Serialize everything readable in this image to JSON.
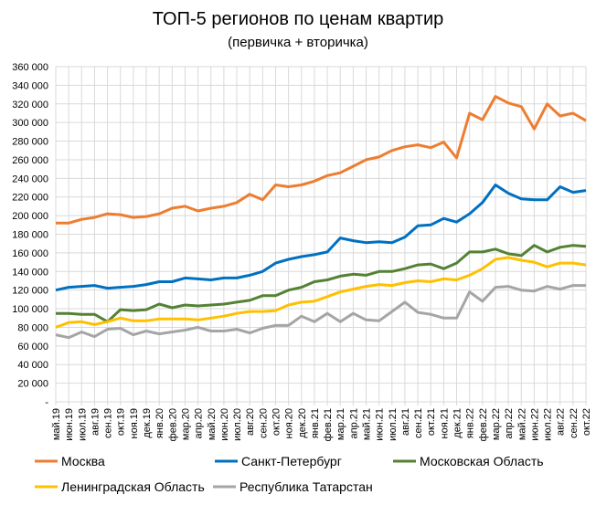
{
  "chart_data": {
    "type": "line",
    "title": "ТОП-5 регионов по ценам квартир",
    "subtitle": "(первичка + вторичка)",
    "xlabel": "",
    "ylabel": "",
    "ylim": [
      0,
      360000
    ],
    "ytick_step": 20000,
    "y_tick_labels": [
      "-",
      "20 000",
      "40 000",
      "60 000",
      "80 000",
      "100 000",
      "120 000",
      "140 000",
      "160 000",
      "180 000",
      "200 000",
      "220 000",
      "240 000",
      "260 000",
      "280 000",
      "300 000",
      "320 000",
      "340 000",
      "360 000"
    ],
    "grid": true,
    "legend_position": "bottom",
    "categories": [
      "май.19",
      "июн.19",
      "июл.19",
      "авг.19",
      "сен.19",
      "окт.19",
      "ноя.19",
      "дек.19",
      "янв.20",
      "фев.20",
      "мар.20",
      "апр.20",
      "май.20",
      "июн.20",
      "июл.20",
      "авг.20",
      "сен.20",
      "окт.20",
      "ноя.20",
      "дек.20",
      "янв.21",
      "фев.21",
      "мар.21",
      "апр.21",
      "май.21",
      "июн.21",
      "июл.21",
      "авг.21",
      "сен.21",
      "окт.21",
      "ноя.21",
      "дек.21",
      "янв.22",
      "фев.22",
      "мар.22",
      "апр.22",
      "май.22",
      "июн.22",
      "июл.22",
      "авг.22",
      "сен.22",
      "окт.22"
    ],
    "series": [
      {
        "name": "Москва",
        "color": "#ED7D31",
        "values": [
          192000,
          192000,
          196000,
          198000,
          202000,
          201000,
          198000,
          199000,
          202000,
          208000,
          210000,
          205000,
          208000,
          210000,
          214000,
          223000,
          217000,
          233000,
          231000,
          233000,
          237000,
          243000,
          246000,
          253000,
          260000,
          263000,
          270000,
          274000,
          276000,
          273000,
          279000,
          262000,
          310000,
          303000,
          328000,
          321000,
          317000,
          293000,
          320000,
          307000,
          310000,
          302000
        ]
      },
      {
        "name": "Санкт-Петербург",
        "color": "#0070C0",
        "values": [
          120000,
          123000,
          124000,
          125000,
          122000,
          123000,
          124000,
          126000,
          129000,
          129000,
          133000,
          132000,
          131000,
          133000,
          133000,
          136000,
          140000,
          149000,
          153000,
          156000,
          158000,
          161000,
          176000,
          173000,
          171000,
          172000,
          171000,
          177000,
          189000,
          190000,
          197000,
          193000,
          202000,
          214000,
          233000,
          224000,
          218000,
          217000,
          217000,
          231000,
          225000,
          227000
        ]
      },
      {
        "name": "Московская Область",
        "color": "#548235",
        "values": [
          95000,
          95000,
          94000,
          94000,
          86000,
          99000,
          98000,
          99000,
          105000,
          101000,
          104000,
          103000,
          104000,
          105000,
          107000,
          109000,
          114000,
          114000,
          120000,
          123000,
          129000,
          131000,
          135000,
          137000,
          136000,
          140000,
          140000,
          143000,
          147000,
          148000,
          143000,
          149000,
          161000,
          161000,
          164000,
          159000,
          157000,
          168000,
          161000,
          166000,
          168000,
          167000
        ]
      },
      {
        "name": "Ленинградская Область",
        "color": "#FFC000",
        "values": [
          80000,
          85000,
          86000,
          83000,
          86000,
          90000,
          87000,
          87000,
          89000,
          89000,
          89000,
          88000,
          90000,
          92000,
          95000,
          97000,
          97000,
          98000,
          104000,
          107000,
          108000,
          113000,
          118000,
          121000,
          124000,
          126000,
          125000,
          128000,
          130000,
          129000,
          132000,
          131000,
          136000,
          143000,
          153000,
          155000,
          152000,
          150000,
          145000,
          149000,
          149000,
          147000
        ]
      },
      {
        "name": "Республика Татарстан",
        "color": "#A5A5A5",
        "values": [
          72000,
          69000,
          75000,
          70000,
          78000,
          79000,
          72000,
          76000,
          73000,
          75000,
          77000,
          80000,
          76000,
          76000,
          78000,
          74000,
          79000,
          82000,
          82000,
          92000,
          86000,
          95000,
          86000,
          95000,
          88000,
          87000,
          97000,
          107000,
          96000,
          94000,
          90000,
          90000,
          118000,
          108000,
          123000,
          124000,
          120000,
          119000,
          124000,
          121000,
          125000,
          125000
        ]
      }
    ]
  }
}
